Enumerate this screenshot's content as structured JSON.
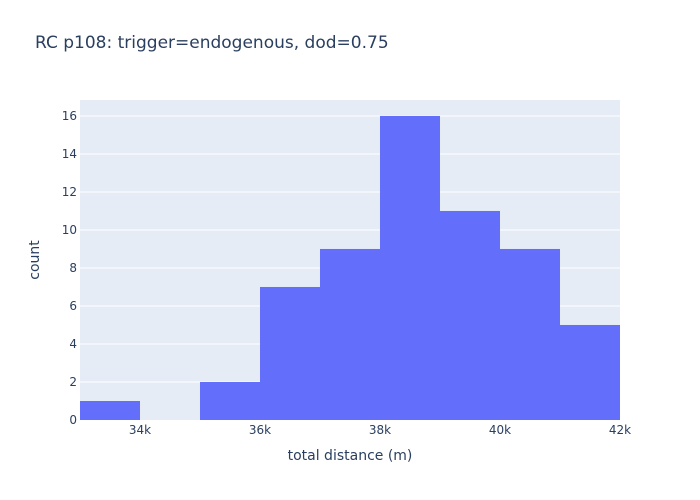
{
  "chart_data": {
    "type": "bar",
    "title": "RC p108: trigger=endogenous, dod=0.75",
    "xlabel": "total distance (m)",
    "ylabel": "count",
    "bins": [
      {
        "x0": 33000,
        "x1": 34000,
        "count": 1
      },
      {
        "x0": 34000,
        "x1": 35000,
        "count": 0
      },
      {
        "x0": 35000,
        "x1": 36000,
        "count": 2
      },
      {
        "x0": 36000,
        "x1": 37000,
        "count": 7
      },
      {
        "x0": 37000,
        "x1": 38000,
        "count": 9
      },
      {
        "x0": 38000,
        "x1": 39000,
        "count": 16
      },
      {
        "x0": 39000,
        "x1": 40000,
        "count": 11
      },
      {
        "x0": 40000,
        "x1": 41000,
        "count": 9
      },
      {
        "x0": 41000,
        "x1": 42000,
        "count": 5
      }
    ],
    "xlim": [
      33000,
      42000
    ],
    "ylim": [
      0,
      16.84
    ],
    "x_ticks": [
      {
        "value": 34000,
        "label": "34k"
      },
      {
        "value": 36000,
        "label": "36k"
      },
      {
        "value": 38000,
        "label": "38k"
      },
      {
        "value": 40000,
        "label": "40k"
      },
      {
        "value": 42000,
        "label": "42k"
      }
    ],
    "y_ticks": [
      {
        "value": 0,
        "label": "0"
      },
      {
        "value": 2,
        "label": "2"
      },
      {
        "value": 4,
        "label": "4"
      },
      {
        "value": 6,
        "label": "6"
      },
      {
        "value": 8,
        "label": "8"
      },
      {
        "value": 10,
        "label": "10"
      },
      {
        "value": 12,
        "label": "12"
      },
      {
        "value": 14,
        "label": "14"
      },
      {
        "value": 16,
        "label": "16"
      }
    ],
    "grid": true,
    "colors": {
      "bar": "#636efa",
      "plot_bg": "#e5ecf6",
      "grid": "#ffffff",
      "text": "#2a3f5f"
    }
  }
}
